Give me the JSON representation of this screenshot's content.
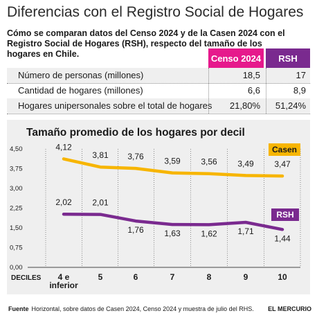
{
  "title": "Diferencias con el Registro Social de Hogares",
  "subtitle": "Cómo se comparan datos del Censo 2024 y de la Casen 2024 con el Registro Social de Hogares (RSH), respecto del tamaño de los hogares en Chile.",
  "table": {
    "headers": [
      "Censo 2024",
      "RSH"
    ],
    "header_colors": [
      "#e6198c",
      "#7a2a8f"
    ],
    "rows": [
      {
        "label": "Número de personas (millones)",
        "censo": "18,5",
        "rsh": "17"
      },
      {
        "label": "Cantidad de hogares (millones)",
        "censo": "6,6",
        "rsh": "8,9"
      },
      {
        "label": "Hogares unipersonales sobre el total de hogares",
        "censo": "21,80%",
        "rsh": "51,24%"
      }
    ]
  },
  "chart_data": {
    "type": "line",
    "title": "Tamaño promedio de los hogares por decil",
    "xlabel": "DECILES",
    "categories": [
      "4 e inferior",
      "5",
      "6",
      "7",
      "8",
      "9",
      "10"
    ],
    "ylim": [
      0,
      4.5
    ],
    "yticks": [
      "0,00",
      "0,75",
      "1,50",
      "2,25",
      "3,00",
      "3,75",
      "4,50"
    ],
    "grid": "vertical-dotted",
    "series": [
      {
        "name": "Casen",
        "color": "#f7b500",
        "values": [
          4.12,
          3.81,
          3.76,
          3.59,
          3.56,
          3.49,
          3.47
        ],
        "labels": [
          "4,12",
          "3,81",
          "3,76",
          "3,59",
          "3,56",
          "3,49",
          "3,47"
        ]
      },
      {
        "name": "RSH",
        "color": "#7a2a8f",
        "values": [
          2.02,
          2.01,
          1.76,
          1.63,
          1.62,
          1.71,
          1.44
        ],
        "labels": [
          "2,02",
          "2,01",
          "1,76",
          "1,63",
          "1,62",
          "1,71",
          "1,44"
        ]
      }
    ]
  },
  "footer": {
    "lead": "Fuente",
    "text": "Horizontal, sobre datos de Casen 2024, Censo 2024 y muestra de julio del RHS.",
    "brand": "EL MERCURIO"
  }
}
